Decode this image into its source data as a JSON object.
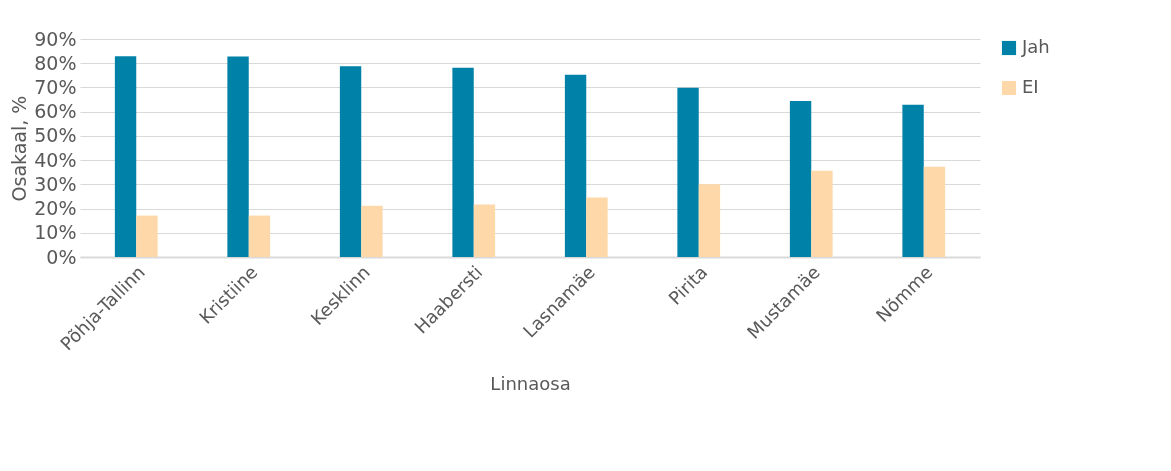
{
  "chart_data": {
    "type": "bar",
    "xlabel": "Linnaosa",
    "ylabel": "Osakaal, %",
    "categories": [
      "Põhja-Tallinn",
      "Kristiine",
      "Kesklinn",
      "Haabersti",
      "Lasnamäe",
      "Pirita",
      "Mustamäe",
      "Nõmme"
    ],
    "series": [
      {
        "name": "Jah",
        "color": "#0081a7",
        "values": [
          82.9,
          82.8,
          78.7,
          78.1,
          75.2,
          69.9,
          64.4,
          62.9
        ]
      },
      {
        "name": "EI",
        "color": "#fed8a9",
        "values": [
          17.1,
          17.1,
          21.2,
          21.7,
          24.6,
          30.0,
          35.6,
          37.3
        ]
      }
    ],
    "ylim": [
      0,
      90
    ],
    "yticks": [
      {
        "value": 0,
        "label": "0%"
      },
      {
        "value": 10,
        "label": "10%"
      },
      {
        "value": 20,
        "label": "20%"
      },
      {
        "value": 30,
        "label": "30%"
      },
      {
        "value": 40,
        "label": "40%"
      },
      {
        "value": 50,
        "label": "50%"
      },
      {
        "value": 60,
        "label": "60%"
      },
      {
        "value": 70,
        "label": "70%"
      },
      {
        "value": 80,
        "label": "80%"
      },
      {
        "value": 90,
        "label": "90%"
      }
    ],
    "grid": true,
    "legend": "right"
  }
}
